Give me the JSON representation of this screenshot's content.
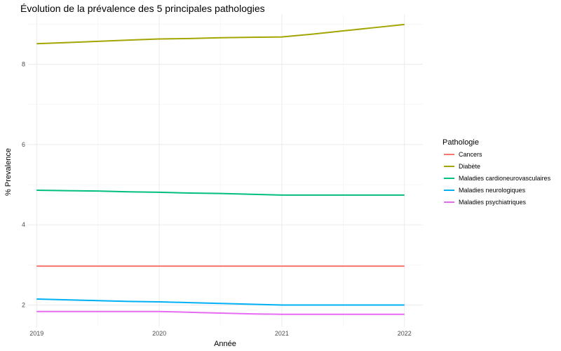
{
  "chart_data": {
    "type": "line",
    "title": "Évolution de la prévalence des 5 principales pathologies",
    "xlabel": "Année",
    "ylabel": "% Prevalence",
    "x": [
      2019,
      2019.25,
      2019.5,
      2019.75,
      2020,
      2020.25,
      2020.5,
      2020.75,
      2021,
      2021.25,
      2021.5,
      2021.75,
      2022
    ],
    "x_ticks": [
      "2019",
      "2020",
      "2021",
      "2022"
    ],
    "y_ticks": [
      "2",
      "4",
      "6",
      "8"
    ],
    "xlim": [
      2018.93,
      2022.15
    ],
    "ylim": [
      1.45,
      9.25
    ],
    "grid": true,
    "legend": {
      "title": "Pathologie",
      "position": "right"
    },
    "series": [
      {
        "name": "Cancers",
        "color": "#F8766D",
        "values": [
          2.97,
          2.97,
          2.97,
          2.97,
          2.97,
          2.97,
          2.97,
          2.97,
          2.97,
          2.97,
          2.97,
          2.97,
          2.97
        ]
      },
      {
        "name": "Diabète",
        "color": "#A3A500",
        "values": [
          8.51,
          8.54,
          8.57,
          8.6,
          8.63,
          8.64,
          8.66,
          8.67,
          8.68,
          8.75,
          8.83,
          8.91,
          8.99
        ]
      },
      {
        "name": "Maladies cardioneurovasculaires",
        "color": "#00BF7D",
        "values": [
          4.86,
          4.85,
          4.84,
          4.82,
          4.81,
          4.79,
          4.78,
          4.76,
          4.74,
          4.74,
          4.74,
          4.74,
          4.74
        ]
      },
      {
        "name": "Maladies neurologiques",
        "color": "#00B0F6",
        "values": [
          2.15,
          2.13,
          2.11,
          2.09,
          2.08,
          2.06,
          2.04,
          2.02,
          2.0,
          2.0,
          2.0,
          2.0,
          2.0
        ]
      },
      {
        "name": "Maladies psychiatriques",
        "color": "#E76BF3",
        "values": [
          1.84,
          1.84,
          1.84,
          1.84,
          1.84,
          1.82,
          1.8,
          1.78,
          1.77,
          1.77,
          1.77,
          1.77,
          1.77
        ]
      }
    ]
  }
}
